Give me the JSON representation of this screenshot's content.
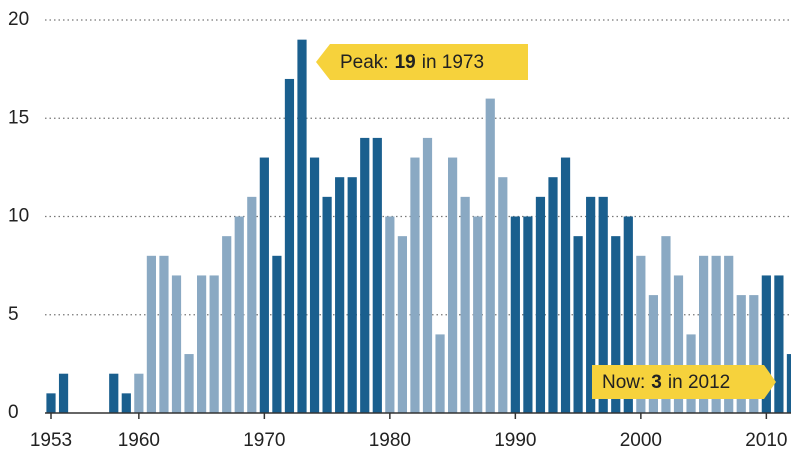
{
  "chart_data": {
    "type": "bar",
    "x": [
      1953,
      1954,
      1955,
      1956,
      1957,
      1958,
      1959,
      1960,
      1961,
      1962,
      1963,
      1964,
      1965,
      1966,
      1967,
      1968,
      1969,
      1970,
      1971,
      1972,
      1973,
      1974,
      1975,
      1976,
      1977,
      1978,
      1979,
      1980,
      1981,
      1982,
      1983,
      1984,
      1985,
      1986,
      1987,
      1988,
      1989,
      1990,
      1991,
      1992,
      1993,
      1994,
      1995,
      1996,
      1997,
      1998,
      1999,
      2000,
      2001,
      2002,
      2003,
      2004,
      2005,
      2006,
      2007,
      2008,
      2009,
      2010,
      2011,
      2012
    ],
    "values": [
      1,
      2,
      0,
      0,
      0,
      2,
      1,
      2,
      8,
      8,
      7,
      3,
      7,
      7,
      9,
      10,
      11,
      13,
      8,
      17,
      19,
      13,
      11,
      12,
      12,
      14,
      14,
      10,
      9,
      13,
      14,
      4,
      13,
      11,
      10,
      16,
      12,
      10,
      10,
      11,
      12,
      13,
      9,
      11,
      11,
      9,
      10,
      8,
      6,
      9,
      7,
      4,
      8,
      8,
      8,
      6,
      6,
      7,
      7,
      3
    ],
    "colors": [
      "#1a5f8e",
      "#1a5f8e",
      "#1a5f8e",
      "#1a5f8e",
      "#1a5f8e",
      "#1a5f8e",
      "#1a5f8e",
      "#8aa9c3",
      "#8aa9c3",
      "#8aa9c3",
      "#8aa9c3",
      "#8aa9c3",
      "#8aa9c3",
      "#8aa9c3",
      "#8aa9c3",
      "#8aa9c3",
      "#8aa9c3",
      "#1a5f8e",
      "#1a5f8e",
      "#1a5f8e",
      "#1a5f8e",
      "#1a5f8e",
      "#1a5f8e",
      "#1a5f8e",
      "#1a5f8e",
      "#1a5f8e",
      "#1a5f8e",
      "#8aa9c3",
      "#8aa9c3",
      "#8aa9c3",
      "#8aa9c3",
      "#8aa9c3",
      "#8aa9c3",
      "#8aa9c3",
      "#8aa9c3",
      "#8aa9c3",
      "#8aa9c3",
      "#1a5f8e",
      "#1a5f8e",
      "#1a5f8e",
      "#1a5f8e",
      "#1a5f8e",
      "#1a5f8e",
      "#1a5f8e",
      "#1a5f8e",
      "#1a5f8e",
      "#1a5f8e",
      "#8aa9c3",
      "#8aa9c3",
      "#8aa9c3",
      "#8aa9c3",
      "#8aa9c3",
      "#8aa9c3",
      "#8aa9c3",
      "#8aa9c3",
      "#8aa9c3",
      "#8aa9c3",
      "#1a5f8e",
      "#1a5f8e",
      "#1a5f8e"
    ],
    "ylim": [
      0,
      20
    ],
    "yticks": [
      0,
      5,
      10,
      15,
      20
    ],
    "xticks": [
      1953,
      1960,
      1970,
      1980,
      1990,
      2000,
      2010
    ],
    "grid": true,
    "annotations": [
      {
        "label": "Peak:",
        "value": 19,
        "suffix": "in 1973",
        "color": "#f6d23c"
      },
      {
        "label": "Now:",
        "value": 3,
        "suffix": "in 2012",
        "color": "#f6d23c"
      }
    ]
  }
}
